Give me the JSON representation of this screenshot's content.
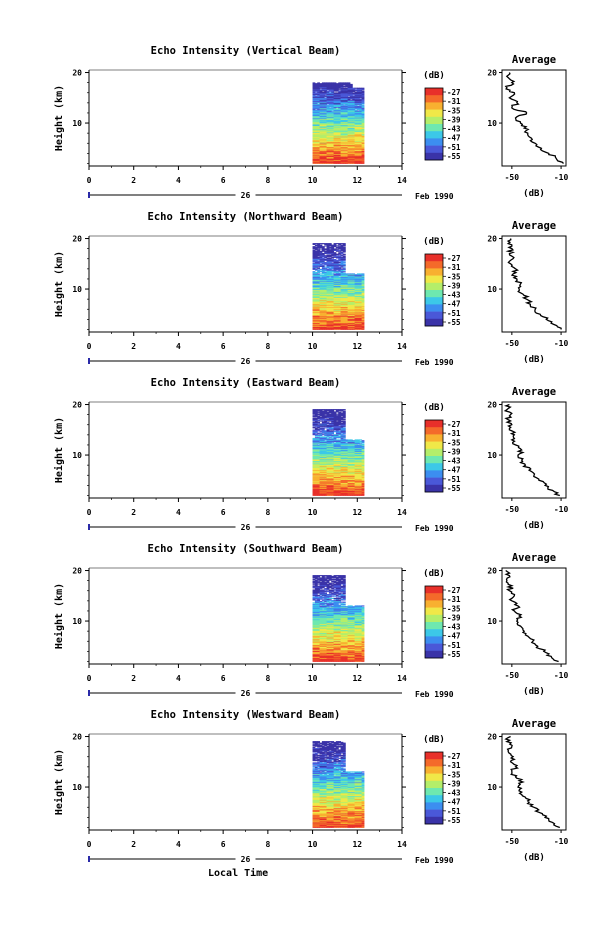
{
  "chart_data": [
    {
      "type": "heatmap",
      "title": "Echo Intensity (Vertical Beam)",
      "beam": "vertical",
      "ylabel": "Height (km)",
      "xticks": [
        "0",
        "2",
        "4",
        "6",
        "8",
        "10",
        "12",
        "14"
      ],
      "xlim": [
        0,
        14
      ],
      "ylim": [
        1.5,
        20.5
      ],
      "yticks": [
        "20",
        "10"
      ],
      "date_day": "26",
      "date_month_year": "Feb 1990",
      "data_extent_hours": [
        10,
        12.3
      ],
      "colorbar": {
        "unit": "(dB)",
        "ticks": [
          "-27",
          "-31",
          "-35",
          "-39",
          "-43",
          "-47",
          "-51",
          "-55"
        ]
      },
      "profile": {
        "title": "Average",
        "xlabel": "(dB)",
        "xticks": [
          "-50",
          "-10"
        ],
        "yticks": [
          "20",
          "10"
        ],
        "xlim": [
          -58,
          -6
        ],
        "ylim": [
          1.5,
          20.5
        ],
        "heights": [
          2,
          3,
          4,
          5,
          6,
          7,
          8,
          9,
          10,
          11,
          12,
          13,
          14,
          15,
          16,
          17,
          18,
          19,
          20
        ],
        "values": [
          -8,
          -14,
          -20,
          -26,
          -31,
          -34,
          -37,
          -40,
          -43,
          -47,
          -38,
          -50,
          -46,
          -52,
          -48,
          -54,
          -50,
          -53,
          -52
        ]
      },
      "max_height_km": 18
    },
    {
      "type": "heatmap",
      "title": "Echo Intensity (Northward Beam)",
      "beam": "north",
      "ylabel": "Height (km)",
      "xticks": [
        "0",
        "2",
        "4",
        "6",
        "8",
        "10",
        "12",
        "14"
      ],
      "xlim": [
        0,
        14
      ],
      "ylim": [
        1.5,
        20.5
      ],
      "yticks": [
        "20",
        "10"
      ],
      "date_day": "26",
      "date_month_year": "Feb 1990",
      "data_extent_hours": [
        10,
        12.3
      ],
      "colorbar": {
        "unit": "(dB)",
        "ticks": [
          "-27",
          "-31",
          "-35",
          "-39",
          "-43",
          "-47",
          "-51",
          "-55"
        ]
      },
      "profile": {
        "title": "Average",
        "xlabel": "(dB)",
        "xticks": [
          "-50",
          "-10"
        ],
        "yticks": [
          "20",
          "10"
        ],
        "xlim": [
          -58,
          -6
        ],
        "ylim": [
          1.5,
          20.5
        ],
        "heights": [
          2,
          3,
          4,
          5,
          6,
          7,
          8,
          9,
          10,
          11,
          12,
          13,
          14,
          15,
          16,
          17,
          18,
          19,
          20
        ],
        "values": [
          -10,
          -16,
          -22,
          -27,
          -31,
          -35,
          -38,
          -41,
          -44,
          -43,
          -46,
          -49,
          -47,
          -51,
          -49,
          -52,
          -50,
          -53,
          -51
        ]
      },
      "max_height_km": 19
    },
    {
      "type": "heatmap",
      "title": "Echo Intensity (Eastward Beam)",
      "beam": "east",
      "ylabel": "Height (km)",
      "xticks": [
        "0",
        "2",
        "4",
        "6",
        "8",
        "10",
        "12",
        "14"
      ],
      "xlim": [
        0,
        14
      ],
      "ylim": [
        1.5,
        20.5
      ],
      "yticks": [
        "20",
        "10"
      ],
      "date_day": "26",
      "date_month_year": "Feb 1990",
      "data_extent_hours": [
        10,
        12.3
      ],
      "colorbar": {
        "unit": "(dB)",
        "ticks": [
          "-27",
          "-31",
          "-35",
          "-39",
          "-43",
          "-47",
          "-51",
          "-55"
        ]
      },
      "profile": {
        "title": "Average",
        "xlabel": "(dB)",
        "xticks": [
          "-50",
          "-10"
        ],
        "yticks": [
          "20",
          "10"
        ],
        "xlim": [
          -58,
          -6
        ],
        "ylim": [
          1.5,
          20.5
        ],
        "heights": [
          2,
          3,
          4,
          5,
          6,
          7,
          8,
          9,
          10,
          11,
          12,
          13,
          14,
          15,
          16,
          17,
          18,
          19,
          20
        ],
        "values": [
          -11,
          -17,
          -23,
          -28,
          -32,
          -36,
          -39,
          -42,
          -45,
          -42,
          -47,
          -50,
          -48,
          -52,
          -50,
          -53,
          -51,
          -54,
          -52
        ]
      },
      "max_height_km": 19
    },
    {
      "type": "heatmap",
      "title": "Echo Intensity (Southward Beam)",
      "beam": "south",
      "ylabel": "Height (km)",
      "xticks": [
        "0",
        "2",
        "4",
        "6",
        "8",
        "10",
        "12",
        "14"
      ],
      "xlim": [
        0,
        14
      ],
      "ylim": [
        1.5,
        20.5
      ],
      "yticks": [
        "20",
        "10"
      ],
      "date_day": "26",
      "date_month_year": "Feb 1990",
      "data_extent_hours": [
        10,
        12.3
      ],
      "colorbar": {
        "unit": "(dB)",
        "ticks": [
          "-27",
          "-31",
          "-35",
          "-39",
          "-43",
          "-47",
          "-51",
          "-55"
        ]
      },
      "profile": {
        "title": "Average",
        "xlabel": "(dB)",
        "xticks": [
          "-50",
          "-10"
        ],
        "yticks": [
          "20",
          "10"
        ],
        "xlim": [
          -58,
          -6
        ],
        "ylim": [
          1.5,
          20.5
        ],
        "heights": [
          2,
          3,
          4,
          5,
          6,
          7,
          8,
          9,
          10,
          11,
          12,
          13,
          14,
          15,
          16,
          17,
          18,
          19,
          20
        ],
        "values": [
          -12,
          -18,
          -24,
          -29,
          -33,
          -37,
          -40,
          -43,
          -46,
          -44,
          -48,
          -45,
          -50,
          -48,
          -52,
          -50,
          -54,
          -52,
          -55
        ]
      },
      "max_height_km": 19
    },
    {
      "type": "heatmap",
      "title": "Echo Intensity (Westward Beam)",
      "beam": "west",
      "ylabel": "Height (km)",
      "xticks": [
        "0",
        "2",
        "4",
        "6",
        "8",
        "10",
        "12",
        "14"
      ],
      "xlim": [
        0,
        14
      ],
      "ylim": [
        1.5,
        20.5
      ],
      "yticks": [
        "20",
        "10"
      ],
      "date_day": "26",
      "date_month_year": "Feb 1990",
      "data_extent_hours": [
        10,
        12.3
      ],
      "colorbar": {
        "unit": "(dB)",
        "ticks": [
          "-27",
          "-31",
          "-35",
          "-39",
          "-43",
          "-47",
          "-51",
          "-55"
        ]
      },
      "profile": {
        "title": "Average",
        "xlabel": "(dB)",
        "xticks": [
          "-50",
          "-10"
        ],
        "yticks": [
          "20",
          "10"
        ],
        "xlim": [
          -58,
          -6
        ],
        "ylim": [
          1.5,
          20.5
        ],
        "heights": [
          2,
          3,
          4,
          5,
          6,
          7,
          8,
          9,
          10,
          11,
          12,
          13,
          14,
          15,
          16,
          17,
          18,
          19,
          20
        ],
        "values": [
          -11,
          -17,
          -23,
          -28,
          -32,
          -36,
          -39,
          -42,
          -45,
          -41,
          -47,
          -50,
          -47,
          -51,
          -49,
          -53,
          -50,
          -54,
          -51
        ]
      },
      "max_height_km": 19
    }
  ],
  "footer": {
    "xlabel": "Local Time"
  },
  "colors": {
    "palette": [
      "#3a33a8",
      "#4a58d8",
      "#3c8ef0",
      "#3cc8e8",
      "#6ee8b0",
      "#b4ee6a",
      "#f0e848",
      "#f8b030",
      "#f46a2a",
      "#e8302a"
    ]
  }
}
